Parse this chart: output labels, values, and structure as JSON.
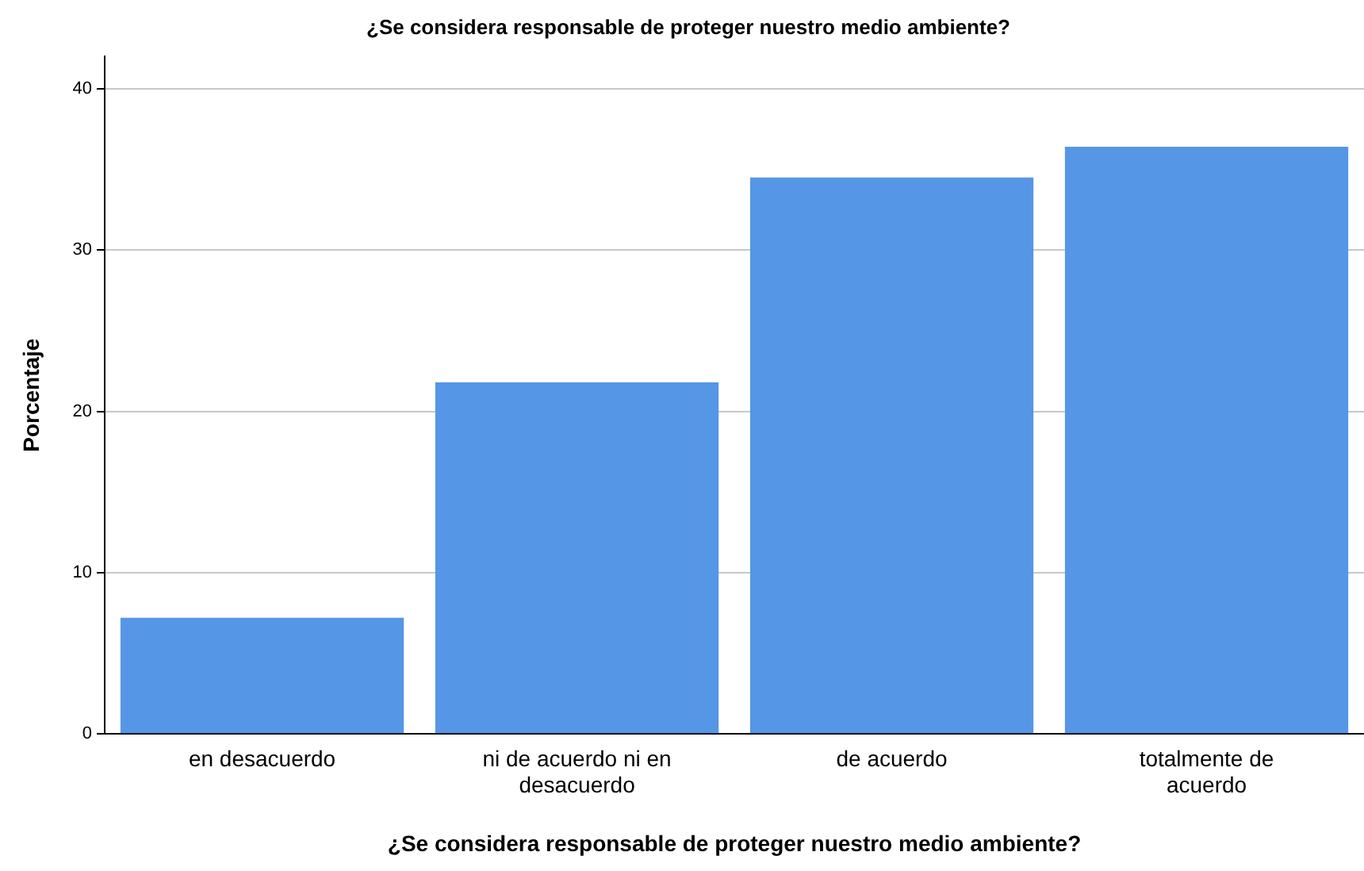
{
  "chart_data": {
    "type": "bar",
    "title": "¿Se considera responsable de proteger nuestro medio ambiente?",
    "xlabel": "¿Se considera responsable de proteger nuestro medio ambiente?",
    "ylabel": "Porcentaje",
    "categories": [
      "en desacuerdo",
      "ni de acuerdo ni en desacuerdo",
      "de acuerdo",
      "totalmente de acuerdo"
    ],
    "values": [
      7.2,
      21.8,
      34.5,
      36.4
    ],
    "color": "#5596e6",
    "ylim": [
      0,
      42
    ],
    "yticks": [
      0,
      10,
      20,
      30,
      40
    ],
    "grid": "y"
  }
}
